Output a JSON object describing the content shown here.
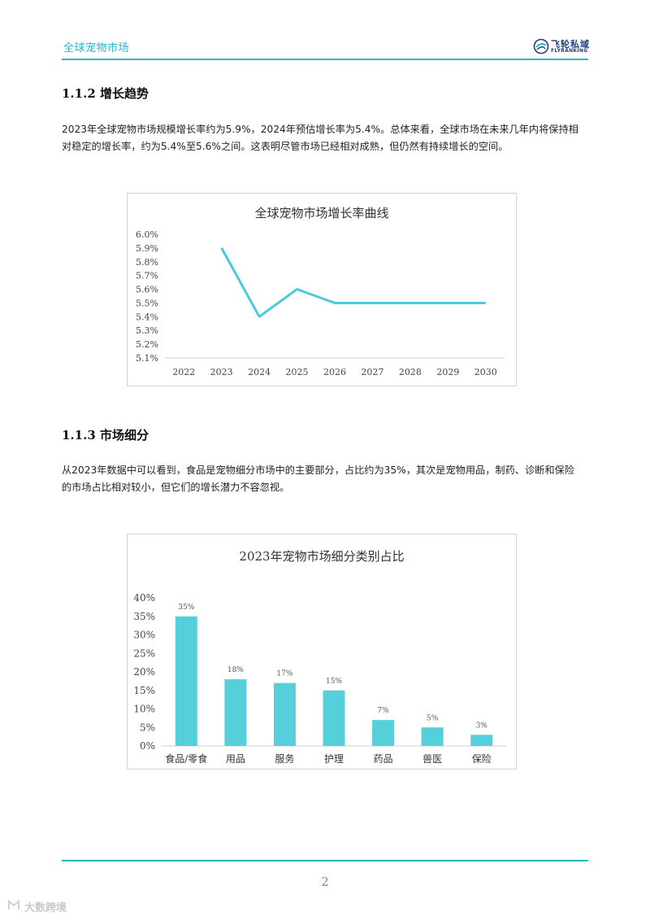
{
  "header": {
    "title": "全球宠物市场",
    "logo_cn": "飞轮私域",
    "logo_en": "FLYRANKING",
    "accent_color": "#2bb5c8"
  },
  "sections": [
    {
      "heading": "1.1.2 增长趋势",
      "paragraph": "2023年全球宠物市场规模增长率约为5.9%，2024年预估增长率为5.4%。总体来看，全球市场在未来几年内将保持相对稳定的增长率，约为5.4%至5.6%之间。这表明尽管市场已经相对成熟，但仍然有持续增长的空间。"
    },
    {
      "heading": "1.1.3 市场细分",
      "paragraph": "从2023年数据中可以看到，食品是宠物细分市场中的主要部分，占比约为35%，其次是宠物用品，制药、诊断和保险的市场占比相对较小，但它们的增长潜力不容忽视。"
    }
  ],
  "chart_data": [
    {
      "type": "line",
      "title": "全球宠物市场增长率曲线",
      "categories": [
        "2022",
        "2023",
        "2024",
        "2025",
        "2026",
        "2027",
        "2028",
        "2029",
        "2030"
      ],
      "series": [
        {
          "values": [
            null,
            5.9,
            5.4,
            5.6,
            5.5,
            5.5,
            5.5,
            5.5,
            5.5
          ],
          "color": "#4cc9dc"
        }
      ],
      "y_ticks": [
        "6.0%",
        "5.9%",
        "5.8%",
        "5.7%",
        "5.6%",
        "5.5%",
        "5.4%",
        "5.3%",
        "5.2%",
        "5.1%"
      ],
      "ylim": [
        5.1,
        6.0
      ],
      "grid": false
    },
    {
      "type": "bar",
      "title": "2023年宠物市场细分类别占比",
      "categories": [
        "食品/零食",
        "用品",
        "服务",
        "护理",
        "药品",
        "兽医",
        "保险"
      ],
      "values": [
        35,
        18,
        17,
        15,
        7,
        5,
        3
      ],
      "data_labels": [
        "35%",
        "18%",
        "17%",
        "15%",
        "7%",
        "5%",
        "3%"
      ],
      "y_ticks": [
        "40%",
        "35%",
        "30%",
        "25%",
        "20%",
        "15%",
        "10%",
        "5%",
        "0%"
      ],
      "ylim": [
        0,
        40
      ],
      "bar_color": "#55d0da",
      "grid": false
    }
  ],
  "footer": {
    "page_number": "2",
    "watermark": "大数跨境"
  }
}
